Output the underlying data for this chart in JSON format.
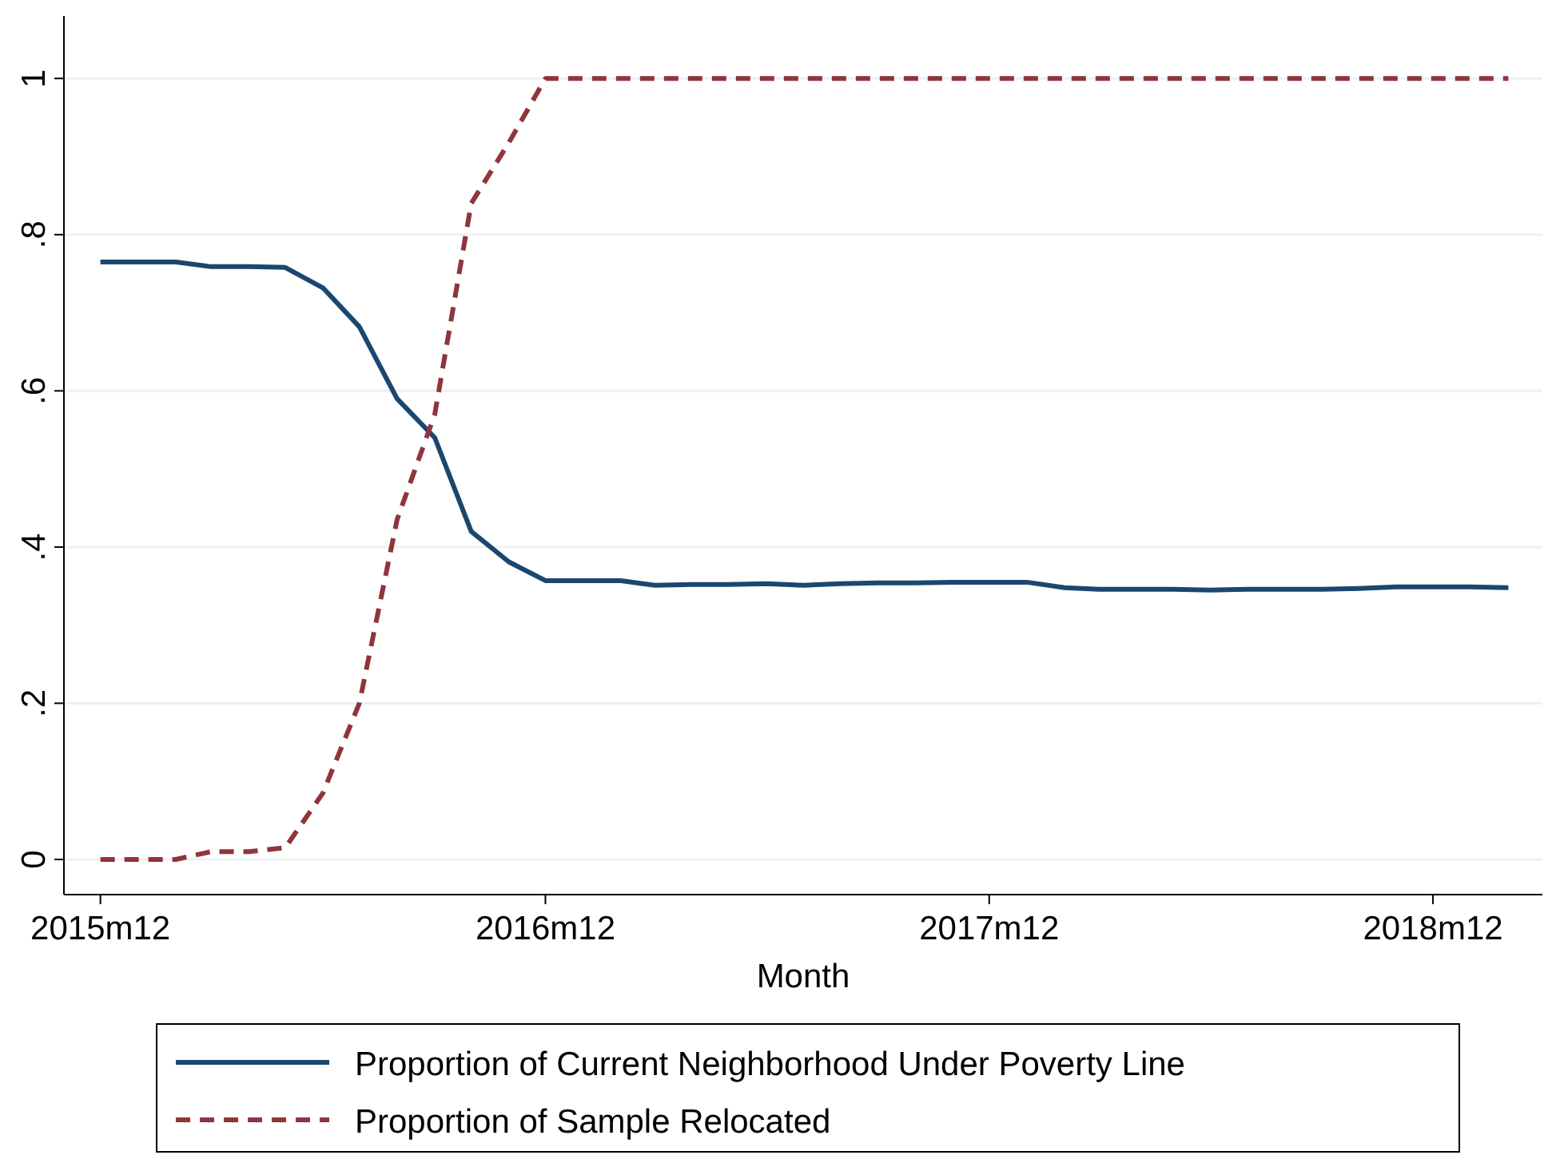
{
  "chart_data": {
    "type": "line",
    "xlabel": "Month",
    "x": [
      "2015-12",
      "2016-01",
      "2016-02",
      "2016-03",
      "2016-04",
      "2016-05",
      "2016-06",
      "2016-07",
      "2016-08",
      "2016-09",
      "2016-10",
      "2016-11",
      "2016-12",
      "2017-01",
      "2017-02",
      "2017-03",
      "2017-04",
      "2017-05",
      "2017-06",
      "2017-07",
      "2017-08",
      "2017-09",
      "2017-10",
      "2017-11",
      "2017-12",
      "2018-01",
      "2018-02",
      "2018-03",
      "2018-04",
      "2018-05",
      "2018-06",
      "2018-07",
      "2018-08",
      "2018-09",
      "2018-10",
      "2018-11",
      "2018-12",
      "2019-01",
      "2019-02"
    ],
    "series": [
      {
        "name": "Proportion of Current Neighborhood Under Poverty Line",
        "color": "#1a476f",
        "line_style": "solid",
        "values": [
          0.765,
          0.765,
          0.765,
          0.759,
          0.759,
          0.758,
          0.732,
          0.682,
          0.59,
          0.54,
          0.42,
          0.381,
          0.357,
          0.357,
          0.357,
          0.351,
          0.352,
          0.352,
          0.353,
          0.351,
          0.353,
          0.354,
          0.354,
          0.355,
          0.355,
          0.355,
          0.348,
          0.346,
          0.346,
          0.346,
          0.345,
          0.346,
          0.346,
          0.346,
          0.347,
          0.349,
          0.349,
          0.349,
          0.348
        ]
      },
      {
        "name": "Proportion of Sample Relocated",
        "color": "#90353b",
        "line_style": "dashed",
        "values": [
          0,
          0,
          0,
          0.01,
          0.01,
          0.015,
          0.085,
          0.2,
          0.435,
          0.57,
          0.84,
          0.918,
          1,
          1,
          1,
          1,
          1,
          1,
          1,
          1,
          1,
          1,
          1,
          1,
          1,
          1,
          1,
          1,
          1,
          1,
          1,
          1,
          1,
          1,
          1,
          1,
          1,
          1,
          1
        ]
      }
    ],
    "xlim": [
      "2015-11",
      "2019-03"
    ],
    "xticks": [
      {
        "value": "2015-12",
        "label": "2015m12"
      },
      {
        "value": "2016-12",
        "label": "2016m12"
      },
      {
        "value": "2017-12",
        "label": "2017m12"
      },
      {
        "value": "2018-12",
        "label": "2018m12"
      }
    ],
    "ylim": [
      -0.045,
      1.08
    ],
    "yticks": [
      {
        "value": 0,
        "label": "0"
      },
      {
        "value": 0.2,
        "label": ".2"
      },
      {
        "value": 0.4,
        "label": ".4"
      },
      {
        "value": 0.6,
        "label": ".6"
      },
      {
        "value": 0.8,
        "label": ".8"
      },
      {
        "value": 1,
        "label": "1"
      }
    ],
    "grid": "y",
    "legend": "bottom",
    "marker": "none"
  }
}
